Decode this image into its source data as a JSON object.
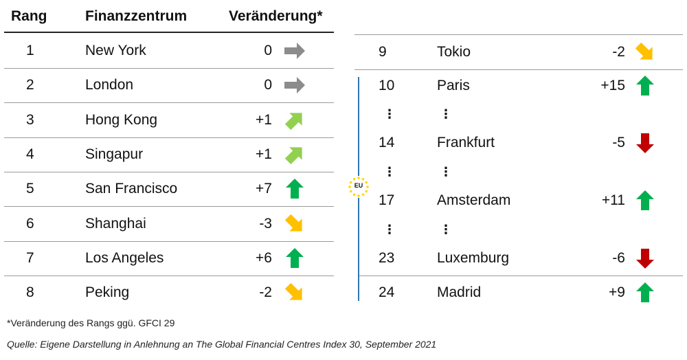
{
  "headers": {
    "rank": "Rang",
    "center": "Finanzzentrum",
    "change": "Veränderung*"
  },
  "colors": {
    "neutral": "#8c8c8c",
    "up_light": "#92d050",
    "up": "#00b050",
    "down_light": "#ffc000",
    "down": "#c00000",
    "eu_line": "#2e75b6",
    "eu_stars": "#ffd700"
  },
  "left_rows": [
    {
      "rank": "1",
      "city": "New York",
      "change": "0",
      "arrow": "right-arrow-icon"
    },
    {
      "rank": "2",
      "city": "London",
      "change": "0",
      "arrow": "right-arrow-icon"
    },
    {
      "rank": "3",
      "city": "Hong Kong",
      "change": "+1",
      "arrow": "up-right-arrow-icon"
    },
    {
      "rank": "4",
      "city": "Singapur",
      "change": "+1",
      "arrow": "up-right-arrow-icon"
    },
    {
      "rank": "5",
      "city": "San Francisco",
      "change": "+7",
      "arrow": "up-arrow-icon"
    },
    {
      "rank": "6",
      "city": "Shanghai",
      "change": "-3",
      "arrow": "down-right-arrow-icon"
    },
    {
      "rank": "7",
      "city": "Los Angeles",
      "change": "+6",
      "arrow": "up-arrow-icon"
    },
    {
      "rank": "8",
      "city": "Peking",
      "change": "-2",
      "arrow": "down-right-arrow-icon"
    }
  ],
  "right_rows": [
    {
      "rank": "9",
      "city": "Tokio",
      "change": "-2",
      "arrow": "down-right-arrow-icon"
    },
    {
      "rank": "10",
      "city": "Paris",
      "change": "+15",
      "arrow": "up-arrow-icon"
    },
    {
      "rank": "14",
      "city": "Frankfurt",
      "change": "-5",
      "arrow": "down-arrow-icon"
    },
    {
      "rank": "17",
      "city": "Amsterdam",
      "change": "+11",
      "arrow": "up-arrow-icon"
    },
    {
      "rank": "23",
      "city": "Luxemburg",
      "change": "-6",
      "arrow": "down-arrow-icon"
    },
    {
      "rank": "24",
      "city": "Madrid",
      "change": "+9",
      "arrow": "up-arrow-icon"
    }
  ],
  "ellipsis": "⋮",
  "eu_label": "EU",
  "footnote": "*Veränderung des Rangs ggü. GFCI 29",
  "source": "Quelle: Eigene Darstellung in Anlehnung an The Global Financial Centres Index 30, September 2021"
}
